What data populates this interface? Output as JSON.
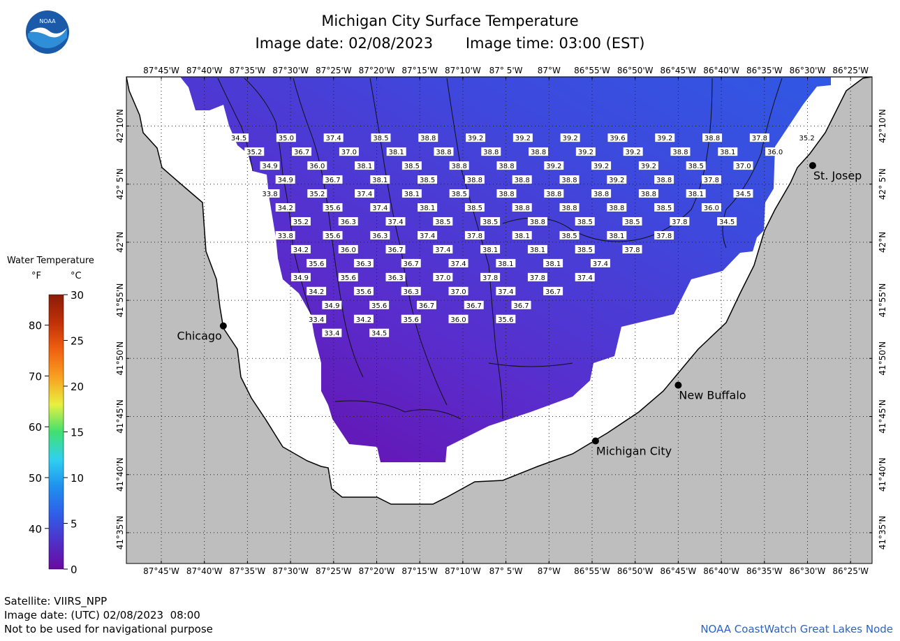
{
  "header": {
    "title": "Michigan City Surface Temperature",
    "image_date": "Image date: 02/08/2023",
    "image_time": "Image time: 03:00 (EST)"
  },
  "logo": {
    "text": "NOAA",
    "colors": {
      "outer": "#1a5aa8",
      "inner": "#2e8fd8",
      "gull": "#ffffff"
    }
  },
  "map": {
    "longitude_labels": [
      "87°45'W",
      "87°40'W",
      "87°35'W",
      "87°30'W",
      "87°25'W",
      "87°20'W",
      "87°15'W",
      "87°10'W",
      "87° 5'W",
      "87°W",
      "86°55'W",
      "86°50'W",
      "86°45'W",
      "86°40'W",
      "86°35'W",
      "86°30'W",
      "86°25'W"
    ],
    "latitude_labels": [
      "42°10'N",
      "42° 5'N",
      "42°N",
      "41°55'N",
      "41°50'N",
      "41°45'N",
      "41°40'N",
      "41°35'N"
    ],
    "cities": [
      {
        "name": "Chicago",
        "lon": -87.63,
        "lat": 41.88
      },
      {
        "name": "Michigan City",
        "lon": -86.91,
        "lat": 41.715
      },
      {
        "name": "New Buffalo",
        "lon": -86.75,
        "lat": 41.795
      },
      {
        "name": "St. Josep",
        "lon": -86.49,
        "lat": 42.11
      }
    ],
    "temperature_rows": [
      {
        "lat": 42.15,
        "lon_start": -87.6,
        "values": [
          "34.5",
          "35.0",
          "37.4",
          "38.5",
          "38.8",
          "39.2",
          "39.2",
          "39.2",
          "39.6",
          "39.2",
          "38.8",
          "37.8",
          "35.2"
        ]
      },
      {
        "lat": 42.13,
        "lon_start": -87.57,
        "values": [
          "35.2",
          "36.7",
          "37.0",
          "38.1",
          "38.8",
          "38.8",
          "38.8",
          "39.2",
          "39.2",
          "38.8",
          "38.1",
          "36.0"
        ]
      },
      {
        "lat": 42.11,
        "lon_start": -87.54,
        "values": [
          "34.9",
          "36.0",
          "38.1",
          "38.5",
          "38.8",
          "38.8",
          "39.2",
          "39.2",
          "39.2",
          "38.5",
          "37.0"
        ]
      },
      {
        "lat": 42.09,
        "lon_start": -87.51,
        "values": [
          "34.9",
          "36.7",
          "38.1",
          "38.5",
          "38.8",
          "38.8",
          "38.8",
          "39.2",
          "38.8",
          "37.8"
        ]
      },
      {
        "lat": 42.07,
        "lon_start": -87.54,
        "values": [
          "33.8",
          "35.2",
          "37.4",
          "38.1",
          "38.5",
          "38.8",
          "38.8",
          "38.8",
          "38.8",
          "38.1",
          "34.5"
        ]
      },
      {
        "lat": 42.05,
        "lon_start": -87.51,
        "values": [
          "34.2",
          "35.6",
          "37.4",
          "38.1",
          "38.5",
          "38.8",
          "38.8",
          "38.8",
          "38.5",
          "36.0"
        ]
      },
      {
        "lat": 42.03,
        "lon_start": -87.48,
        "values": [
          "35.2",
          "36.3",
          "37.4",
          "38.5",
          "38.5",
          "38.8",
          "38.5",
          "38.5",
          "37.8",
          "34.5"
        ]
      },
      {
        "lat": 42.01,
        "lon_start": -87.51,
        "values": [
          "33.8",
          "35.6",
          "36.3",
          "37.4",
          "37.8",
          "38.1",
          "38.5",
          "38.1",
          "37.8"
        ]
      },
      {
        "lat": 41.99,
        "lon_start": -87.48,
        "values": [
          "34.2",
          "36.0",
          "36.7",
          "37.4",
          "38.1",
          "38.1",
          "38.5",
          "37.8"
        ]
      },
      {
        "lat": 41.97,
        "lon_start": -87.45,
        "values": [
          "35.6",
          "36.3",
          "36.7",
          "37.4",
          "38.1",
          "38.1",
          "37.4"
        ]
      },
      {
        "lat": 41.95,
        "lon_start": -87.48,
        "values": [
          "34.9",
          "35.6",
          "36.3",
          "37.0",
          "37.8",
          "37.8",
          "37.4"
        ]
      },
      {
        "lat": 41.93,
        "lon_start": -87.45,
        "values": [
          "34.2",
          "35.6",
          "36.3",
          "37.0",
          "37.4",
          "36.7"
        ]
      },
      {
        "lat": 41.91,
        "lon_start": -87.42,
        "values": [
          "34.9",
          "35.6",
          "36.7",
          "36.7",
          "36.7"
        ]
      },
      {
        "lat": 41.89,
        "lon_start": -87.45,
        "values": [
          "33.4",
          "34.2",
          "35.6",
          "36.0",
          "35.6"
        ]
      },
      {
        "lat": 41.87,
        "lon_start": -87.42,
        "values": [
          "33.4",
          "34.5"
        ]
      }
    ]
  },
  "legend": {
    "title": "Water Temperature",
    "unit_f": "°F",
    "unit_c": "°C",
    "f_ticks": [
      "80",
      "70",
      "60",
      "50",
      "40"
    ],
    "c_ticks": [
      "30",
      "25",
      "20",
      "15",
      "10",
      "5",
      "0"
    ],
    "gradient": [
      "#6a0aa0",
      "#5030c8",
      "#2f5ee8",
      "#1f90ee",
      "#30d0f0",
      "#40e070",
      "#e8f040",
      "#f8a020",
      "#f06010",
      "#c03008",
      "#8a1c08"
    ]
  },
  "footer": {
    "satellite": "Satellite: VIIRS_NPP",
    "utc_date": "Image date: (UTC) 02/08/2023  08:00",
    "disclaimer": "Not to be used for navigational purpose",
    "node": "NOAA CoastWatch Great Lakes Node"
  }
}
